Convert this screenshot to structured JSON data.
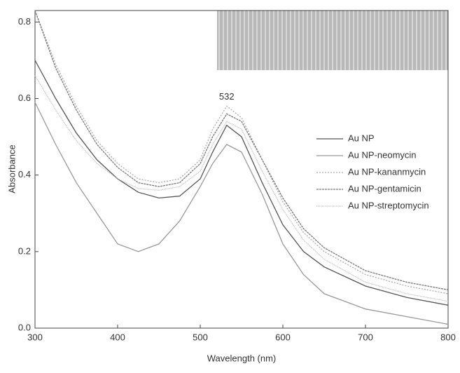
{
  "chart_data": {
    "type": "line",
    "x_label": "Wavelength (nm)",
    "y_label": "Absorbance",
    "annotation": "532",
    "x": [
      300,
      325,
      350,
      375,
      400,
      425,
      450,
      475,
      500,
      515,
      532,
      550,
      575,
      600,
      625,
      650,
      700,
      750,
      800
    ],
    "series": [
      {
        "name": "Au NP",
        "color": "#555555",
        "dash": "none",
        "values": [
          0.7,
          0.6,
          0.51,
          0.44,
          0.39,
          0.355,
          0.34,
          0.345,
          0.39,
          0.46,
          0.53,
          0.5,
          0.38,
          0.27,
          0.2,
          0.16,
          0.11,
          0.08,
          0.06
        ]
      },
      {
        "name": "Au NP-neomycin",
        "color": "#999999",
        "dash": "none",
        "values": [
          0.59,
          0.48,
          0.38,
          0.3,
          0.22,
          0.2,
          0.22,
          0.28,
          0.37,
          0.43,
          0.48,
          0.46,
          0.35,
          0.22,
          0.14,
          0.09,
          0.05,
          0.03,
          0.01
        ]
      },
      {
        "name": "Au NP-kananmycin",
        "color": "#aaaaaa",
        "dash": "2 2",
        "values": [
          0.83,
          0.69,
          0.58,
          0.49,
          0.43,
          0.39,
          0.38,
          0.39,
          0.44,
          0.52,
          0.58,
          0.55,
          0.44,
          0.33,
          0.25,
          0.2,
          0.14,
          0.11,
          0.09
        ]
      },
      {
        "name": "Au NP-gentamicin",
        "color": "#777777",
        "dash": "3 1",
        "values": [
          0.83,
          0.68,
          0.57,
          0.48,
          0.42,
          0.38,
          0.37,
          0.38,
          0.43,
          0.5,
          0.56,
          0.54,
          0.44,
          0.34,
          0.26,
          0.21,
          0.15,
          0.12,
          0.1
        ]
      },
      {
        "name": "Au NP-streptomycin",
        "color": "#bbbbbb",
        "dash": "1 1",
        "values": [
          0.66,
          0.57,
          0.49,
          0.43,
          0.39,
          0.365,
          0.36,
          0.37,
          0.41,
          0.48,
          0.54,
          0.52,
          0.41,
          0.31,
          0.23,
          0.18,
          0.12,
          0.09,
          0.07
        ]
      }
    ],
    "xlim": [
      300,
      800
    ],
    "ylim": [
      0,
      0.83
    ],
    "xticks": [
      300,
      400,
      500,
      600,
      700,
      800
    ],
    "yticks": [
      {
        "value": 0,
        "label": "0.0"
      },
      0.2,
      0.4,
      0.6,
      0.8
    ],
    "legend": "right"
  }
}
